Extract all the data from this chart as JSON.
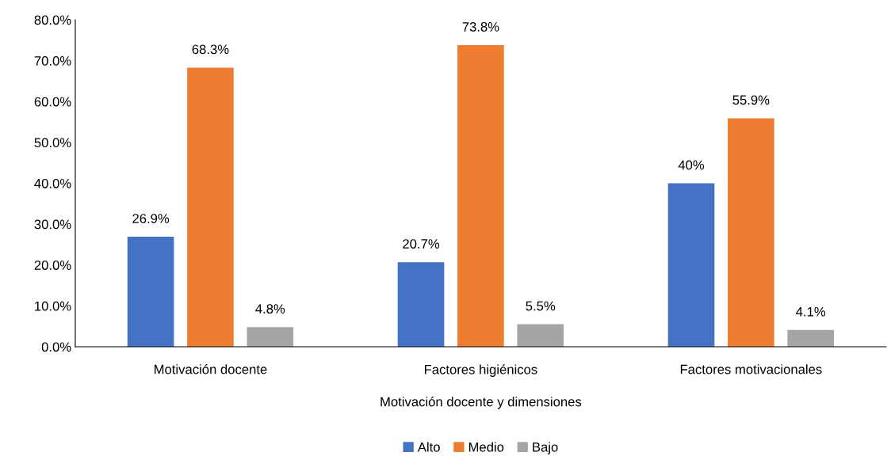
{
  "chart_data": {
    "type": "bar",
    "xlabel": "Motivación docente y dimensiones",
    "categories": [
      "Motivación docente",
      "Factores higiénicos",
      "Factores motivacionales"
    ],
    "series": [
      {
        "name": "Alto",
        "color": "#4472c4",
        "values": [
          26.9,
          20.7,
          40
        ],
        "value_labels": [
          "26.9%",
          "20.7%",
          "40%"
        ]
      },
      {
        "name": "Medio",
        "color": "#ed7d31",
        "values": [
          68.3,
          73.8,
          55.9
        ],
        "value_labels": [
          "68.3%",
          "73.8%",
          "55.9%"
        ]
      },
      {
        "name": "Bajo",
        "color": "#a5a5a5",
        "values": [
          4.8,
          5.5,
          4.1
        ],
        "value_labels": [
          "4.8%",
          "5.5%",
          "4.1%"
        ]
      }
    ],
    "ylim": [
      0,
      80
    ],
    "yticks": [
      {
        "value": 0,
        "label": "0.0%"
      },
      {
        "value": 10,
        "label": "10.0%"
      },
      {
        "value": 20,
        "label": "20.0%"
      },
      {
        "value": 30,
        "label": "30.0%"
      },
      {
        "value": 40,
        "label": "40.0%"
      },
      {
        "value": 50,
        "label": "50.0%"
      },
      {
        "value": 60,
        "label": "60.0%"
      },
      {
        "value": 70,
        "label": "70.0%"
      },
      {
        "value": 80,
        "label": "80.0%"
      }
    ],
    "grid": false,
    "legend": "bottom"
  }
}
